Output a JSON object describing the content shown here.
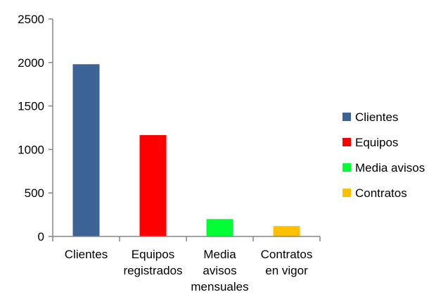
{
  "chart_data": {
    "type": "bar",
    "title": "",
    "xlabel": "",
    "ylabel": "",
    "ylim": [
      0,
      2500
    ],
    "yticks": [
      0,
      500,
      1000,
      1500,
      2000,
      2500
    ],
    "grid": false,
    "legend_position": "right",
    "series": [
      {
        "name": "Clientes",
        "value": 1980,
        "color": "#3c6296",
        "category_lines": [
          "Clientes"
        ]
      },
      {
        "name": "Equipos",
        "value": 1165,
        "color": "#ff0000",
        "category_lines": [
          "Equipos",
          "registrados"
        ]
      },
      {
        "name": "Media avisos",
        "value": 200,
        "color": "#00ff33",
        "category_lines": [
          "Media",
          "avisos",
          "mensuales"
        ]
      },
      {
        "name": "Contratos",
        "value": 120,
        "color": "#ffc000",
        "category_lines": [
          "Contratos",
          "en vigor"
        ]
      }
    ]
  }
}
